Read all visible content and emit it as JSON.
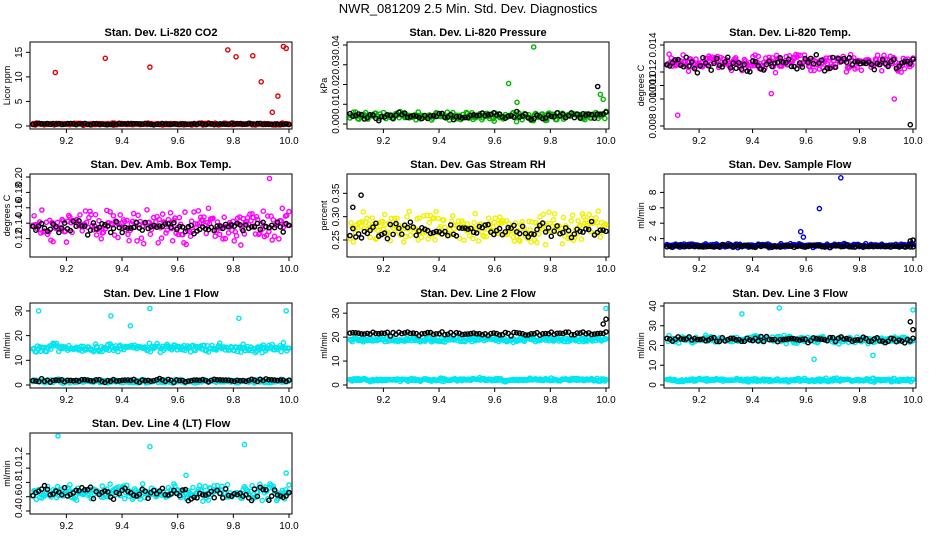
{
  "figure": {
    "title": "NWR_081209  2.5 Min. Std. Dev. Diagnostics"
  },
  "chart_data": [
    {
      "type": "scatter",
      "title": "Stan. Dev. Li-820 CO2",
      "xlabel": "",
      "ylabel": "Licor ppm",
      "xlim": [
        9.08,
        10.0
      ],
      "ylim": [
        0,
        16.5
      ],
      "x_ticks": [
        "9.2",
        "9.4",
        "9.6",
        "9.8",
        "10.0"
      ],
      "y_ticks": [
        "0",
        "5",
        "10",
        "15"
      ],
      "series": [
        {
          "name": "Stan. Dev. Li-820 CO2 (red)",
          "color": "#e00000",
          "base": 0.4,
          "spread": 0.3,
          "outliers": [
            [
              9.16,
              10.9
            ],
            [
              9.34,
              13.8
            ],
            [
              9.5,
              12.0
            ],
            [
              9.78,
              15.5
            ],
            [
              9.81,
              14.1
            ],
            [
              9.87,
              14.3
            ],
            [
              9.9,
              9.0
            ],
            [
              9.94,
              2.8
            ],
            [
              9.98,
              16.2
            ],
            [
              9.99,
              15.8
            ],
            [
              9.96,
              6.1
            ]
          ]
        },
        {
          "name": "Stan. Dev. Li-820 CO2 (black)",
          "color": "#000000",
          "base": 0.4,
          "spread": 0.2,
          "outliers": []
        }
      ]
    },
    {
      "type": "scatter",
      "title": "Stan. Dev. Li-820 Pressure",
      "xlabel": "",
      "ylabel": "kPa",
      "xlim": [
        9.08,
        10.0
      ],
      "ylim": [
        -0.001,
        0.04
      ],
      "x_ticks": [
        "9.2",
        "9.4",
        "9.6",
        "9.8",
        "10.0"
      ],
      "y_ticks": [
        "0.00",
        "0.01",
        "0.02",
        "0.03",
        "0.04"
      ],
      "series": [
        {
          "name": "Stan. Dev. Li-820 Pressure (green)",
          "color": "#00b400",
          "base": 0.004,
          "spread": 0.003,
          "outliers": [
            [
              9.65,
              0.0205
            ],
            [
              9.74,
              0.039
            ],
            [
              9.68,
              0.011
            ],
            [
              9.98,
              0.015
            ],
            [
              9.99,
              0.0125
            ]
          ]
        },
        {
          "name": "Stan. Dev. Li-820 Pressure (black)",
          "color": "#000000",
          "base": 0.004,
          "spread": 0.003,
          "outliers": [
            [
              9.97,
              0.019
            ]
          ]
        }
      ]
    },
    {
      "type": "scatter",
      "title": "Stan. Dev. Li-820 Temp.",
      "xlabel": "",
      "ylabel": "degrees C",
      "xlim": [
        9.08,
        10.0
      ],
      "ylim": [
        0.008,
        0.014
      ],
      "x_ticks": [
        "9.2",
        "9.4",
        "9.6",
        "9.8",
        "10.0"
      ],
      "y_ticks": [
        "0.008",
        "0.010",
        "0.011",
        "0.012",
        "0.014"
      ],
      "series": [
        {
          "name": "Stan. Dev. Li-820 Temp. (magenta)",
          "color": "#ff00ff",
          "base": 0.0127,
          "spread": 0.0009,
          "outliers": [
            [
              9.12,
              0.0088
            ],
            [
              9.47,
              0.0104
            ],
            [
              9.93,
              0.01
            ]
          ]
        },
        {
          "name": "Stan. Dev. Li-820 Temp. (black)",
          "color": "#000000",
          "base": 0.0126,
          "spread": 0.0008,
          "outliers": [
            [
              9.99,
              0.0081
            ]
          ]
        }
      ]
    },
    {
      "type": "scatter",
      "title": "Stan. Dev. Amb. Box Temp.",
      "xlabel": "",
      "ylabel": "degrees C",
      "xlim": [
        9.08,
        10.0
      ],
      "ylim": [
        0.1,
        0.2
      ],
      "x_ticks": [
        "9.2",
        "9.4",
        "9.6",
        "9.8",
        "10.0"
      ],
      "y_ticks": [
        "0.12",
        "0.14",
        "0.16",
        "0.18",
        "0.20"
      ],
      "series": [
        {
          "name": "Stan. Dev. Amb. Box Temp. (magenta)",
          "color": "#ff00ff",
          "base": 0.137,
          "spread": 0.03,
          "outliers": [
            [
              9.93,
              0.198
            ]
          ]
        },
        {
          "name": "Stan. Dev. Amb. Box Temp. (black)",
          "color": "#000000",
          "base": 0.135,
          "spread": 0.012,
          "outliers": []
        }
      ]
    },
    {
      "type": "scatter",
      "title": "Stan. Dev. Gas Stream RH",
      "xlabel": "",
      "ylabel": "percent",
      "xlim": [
        9.08,
        10.0
      ],
      "ylim": [
        0.22,
        0.385
      ],
      "x_ticks": [
        "9.2",
        "9.4",
        "9.6",
        "9.8",
        "10.0"
      ],
      "y_ticks": [
        "0.25",
        "0.30",
        "0.35"
      ],
      "series": [
        {
          "name": "Stan. Dev. Gas Stream RH (yellow)",
          "color": "#f0f000",
          "base": 0.275,
          "spread": 0.045,
          "outliers": []
        },
        {
          "name": "Stan. Dev. Gas Stream RH (black)",
          "color": "#000000",
          "base": 0.27,
          "spread": 0.025,
          "outliers": [
            [
              9.12,
              0.346
            ],
            [
              9.09,
              0.32
            ]
          ]
        }
      ]
    },
    {
      "type": "scatter",
      "title": "Stan. Dev. Sample Flow",
      "xlabel": "",
      "ylabel": "ml/min",
      "xlim": [
        9.08,
        10.0
      ],
      "ylim": [
        0,
        10
      ],
      "x_ticks": [
        "9.2",
        "9.4",
        "9.6",
        "9.8",
        "10.0"
      ],
      "y_ticks": [
        "2",
        "4",
        "6",
        "8"
      ],
      "series": [
        {
          "name": "Stan. Dev. Sample Flow (blue)",
          "color": "#0000e0",
          "base": 1.1,
          "spread": 0.35,
          "outliers": [
            [
              9.58,
              2.9
            ],
            [
              9.59,
              2.2
            ],
            [
              9.65,
              5.9
            ],
            [
              9.73,
              9.9
            ]
          ]
        },
        {
          "name": "Stan. Dev. Sample Flow (black)",
          "color": "#000000",
          "base": 1.0,
          "spread": 0.25,
          "outliers": [
            [
              9.99,
              1.7
            ],
            [
              10.0,
              1.8
            ]
          ]
        }
      ]
    },
    {
      "type": "scatter",
      "title": "Stan. Dev. Line 1 Flow",
      "xlabel": "",
      "ylabel": "ml/min",
      "xlim": [
        9.08,
        10.0
      ],
      "ylim": [
        0,
        32
      ],
      "x_ticks": [
        "9.2",
        "9.4",
        "9.6",
        "9.8",
        "10.0"
      ],
      "y_ticks": [
        "0",
        "10",
        "20",
        "30"
      ],
      "series": [
        {
          "name": "Stan. Dev. Line 1 Flow (cyan, high)",
          "color": "#00e5ee",
          "base": 15,
          "spread": 2.5,
          "outliers": [
            [
              9.1,
              30
            ],
            [
              9.36,
              28
            ],
            [
              9.43,
              24
            ],
            [
              9.5,
              31
            ],
            [
              9.82,
              27
            ],
            [
              9.99,
              30
            ]
          ]
        },
        {
          "name": "Stan. Dev. Line 1 Flow (cyan, low)",
          "color": "#00e5ee",
          "base": 1.5,
          "spread": 1.0,
          "outliers": []
        },
        {
          "name": "Stan. Dev. Line 1 Flow (black)",
          "color": "#000000",
          "base": 1.8,
          "spread": 1.0,
          "outliers": []
        }
      ]
    },
    {
      "type": "scatter",
      "title": "Stan. Dev. Line 2 Flow",
      "xlabel": "",
      "ylabel": "ml/min",
      "xlim": [
        9.08,
        10.0
      ],
      "ylim": [
        0,
        33
      ],
      "x_ticks": [
        "9.2",
        "9.4",
        "9.6",
        "9.8",
        "10.0"
      ],
      "y_ticks": [
        "0",
        "10",
        "20",
        "30"
      ],
      "series": [
        {
          "name": "Stan. Dev. Line 2 Flow (cyan, high)",
          "color": "#00e5ee",
          "base": 19,
          "spread": 1.6,
          "outliers": [
            [
              10.0,
              32
            ]
          ]
        },
        {
          "name": "Stan. Dev. Line 2 Flow (cyan, low)",
          "color": "#00e5ee",
          "base": 2.2,
          "spread": 1.0,
          "outliers": []
        },
        {
          "name": "Stan. Dev. Line 2 Flow (black)",
          "color": "#000000",
          "base": 21.5,
          "spread": 1.2,
          "outliers": [
            [
              9.99,
              25.5
            ],
            [
              10.0,
              27.5
            ]
          ]
        }
      ]
    },
    {
      "type": "scatter",
      "title": "Stan. Dev. Line 3 Flow",
      "xlabel": "",
      "ylabel": "ml/min",
      "xlim": [
        9.08,
        10.0
      ],
      "ylim": [
        0,
        40
      ],
      "x_ticks": [
        "9.2",
        "9.4",
        "9.6",
        "9.8",
        "10.0"
      ],
      "y_ticks": [
        "0",
        "10",
        "20",
        "30",
        "40"
      ],
      "series": [
        {
          "name": "Stan. Dev. Line 3 Flow (cyan, high)",
          "color": "#00e5ee",
          "base": 23,
          "spread": 2.5,
          "outliers": [
            [
              9.36,
              36
            ],
            [
              9.5,
              39
            ],
            [
              9.63,
              13
            ],
            [
              9.85,
              15
            ],
            [
              10.0,
              38
            ]
          ]
        },
        {
          "name": "Stan. Dev. Line 3 Flow (cyan, low)",
          "color": "#00e5ee",
          "base": 2.5,
          "spread": 1.2,
          "outliers": []
        },
        {
          "name": "Stan. Dev. Line 3 Flow (black)",
          "color": "#000000",
          "base": 23,
          "spread": 2.0,
          "outliers": [
            [
              9.99,
              32
            ],
            [
              10.0,
              28
            ]
          ]
        }
      ]
    },
    {
      "type": "scatter",
      "title": "Stan. Dev. Line 4 (LT) Flow",
      "xlabel": "",
      "ylabel": "ml/min",
      "xlim": [
        9.08,
        10.0
      ],
      "ylim": [
        0.4,
        1.45
      ],
      "x_ticks": [
        "9.2",
        "9.4",
        "9.6",
        "9.8",
        "10.0"
      ],
      "y_ticks": [
        "0.4",
        "0.6",
        "0.8",
        "1.0",
        "1.2"
      ],
      "series": [
        {
          "name": "Stan. Dev. Line 4 (LT) Flow (cyan)",
          "color": "#00e5ee",
          "base": 0.66,
          "spread": 0.16,
          "outliers": [
            [
              9.17,
              1.45
            ],
            [
              9.5,
              1.3
            ],
            [
              9.84,
              1.33
            ],
            [
              9.63,
              0.9
            ],
            [
              9.99,
              0.93
            ]
          ]
        },
        {
          "name": "Stan. Dev. Line 4 (LT) Flow (black)",
          "color": "#000000",
          "base": 0.65,
          "spread": 0.13,
          "outliers": []
        }
      ]
    }
  ]
}
